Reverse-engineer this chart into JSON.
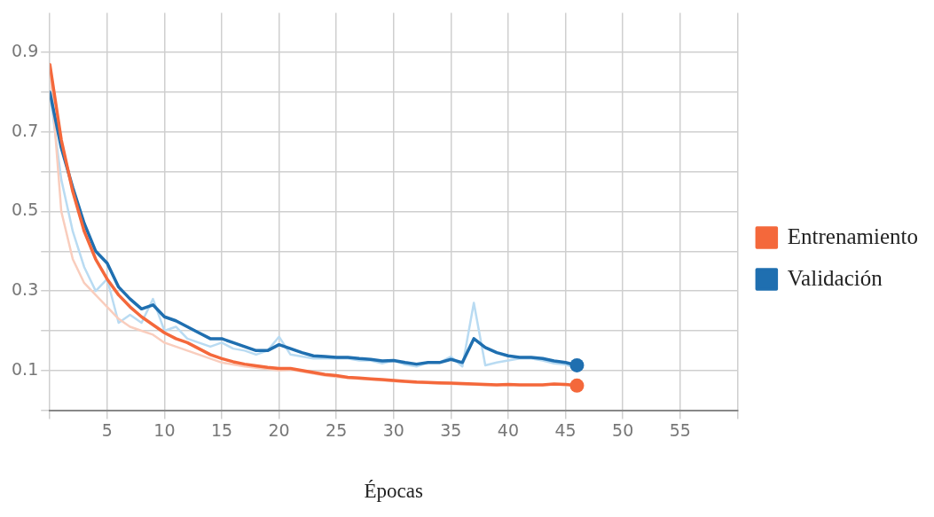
{
  "chart_data": {
    "type": "line",
    "xlabel": "Épocas",
    "xlim": [
      0,
      60
    ],
    "xticks": [
      {
        "value": 0,
        "label": null
      },
      5,
      10,
      15,
      20,
      25,
      30,
      35,
      40,
      45,
      50,
      55,
      {
        "value": 60,
        "label": null
      }
    ],
    "ylim": [
      0,
      1
    ],
    "yticks": [
      {
        "value": 0,
        "label": null
      },
      0.1,
      {
        "value": 0.2,
        "label": null
      },
      0.3,
      {
        "value": 0.4,
        "label": null
      },
      0.5,
      {
        "value": 0.6,
        "label": null
      },
      0.7,
      {
        "value": 0.8,
        "label": null
      },
      0.9
    ],
    "x": [
      0,
      1,
      2,
      3,
      4,
      5,
      6,
      7,
      8,
      9,
      10,
      11,
      12,
      13,
      14,
      15,
      16,
      17,
      18,
      19,
      20,
      21,
      22,
      23,
      24,
      25,
      26,
      27,
      28,
      29,
      30,
      31,
      32,
      33,
      34,
      35,
      36,
      37,
      38,
      39,
      40,
      41,
      42,
      43,
      44,
      45,
      46
    ],
    "grid": true,
    "legend": "right",
    "series": [
      {
        "color": "#f9cdbd",
        "values": [
          0.87,
          0.5,
          0.38,
          0.32,
          0.29,
          0.26,
          0.23,
          0.21,
          0.2,
          0.19,
          0.17,
          0.16,
          0.15,
          0.14,
          0.13,
          0.12,
          0.115,
          0.11,
          0.107,
          0.104,
          0.1,
          0.102,
          0.097,
          0.092,
          0.087,
          0.084,
          0.081,
          0.079,
          0.077,
          0.075,
          0.073,
          0.071,
          0.069,
          0.068,
          0.067,
          0.066,
          0.065,
          null,
          0.063,
          null,
          0.064,
          null,
          null,
          0.063,
          0.065,
          0.063,
          null
        ]
      },
      {
        "color": "#b9dbf2",
        "values": [
          0.8,
          0.58,
          0.45,
          0.36,
          0.3,
          0.33,
          0.22,
          0.24,
          0.22,
          0.28,
          0.2,
          0.21,
          0.18,
          0.17,
          0.16,
          0.17,
          0.155,
          0.15,
          0.14,
          0.15,
          0.185,
          0.14,
          0.135,
          0.13,
          0.13,
          0.13,
          0.13,
          0.125,
          0.125,
          0.118,
          0.125,
          0.115,
          0.11,
          0.12,
          0.12,
          0.135,
          0.11,
          0.27,
          0.113,
          0.12,
          0.125,
          0.13,
          0.13,
          0.125,
          0.118,
          0.115,
          0.105
        ]
      },
      {
        "name": "Entrenamiento",
        "color": "#f4683b",
        "values": [
          0.87,
          0.68,
          0.55,
          0.45,
          0.38,
          0.33,
          0.29,
          0.26,
          0.235,
          0.215,
          0.195,
          0.18,
          0.17,
          0.155,
          0.14,
          0.13,
          0.122,
          0.116,
          0.112,
          0.108,
          0.105,
          0.105,
          0.1,
          0.095,
          0.09,
          0.087,
          0.083,
          0.081,
          0.079,
          0.077,
          0.075,
          0.073,
          0.071,
          0.07,
          0.069,
          0.068,
          0.067,
          0.066,
          0.065,
          0.064,
          0.065,
          0.064,
          0.064,
          0.064,
          0.066,
          0.065,
          0.062
        ]
      },
      {
        "name": "Validación",
        "color": "#1f6fb0",
        "values": [
          0.8,
          0.66,
          0.56,
          0.47,
          0.4,
          0.37,
          0.31,
          0.28,
          0.255,
          0.265,
          0.235,
          0.225,
          0.21,
          0.195,
          0.18,
          0.18,
          0.17,
          0.16,
          0.15,
          0.15,
          0.165,
          0.155,
          0.145,
          0.137,
          0.135,
          0.133,
          0.133,
          0.13,
          0.128,
          0.124,
          0.125,
          0.12,
          0.116,
          0.12,
          0.12,
          0.128,
          0.12,
          0.18,
          0.158,
          0.145,
          0.137,
          0.133,
          0.133,
          0.13,
          0.124,
          0.12,
          0.113
        ]
      }
    ]
  }
}
